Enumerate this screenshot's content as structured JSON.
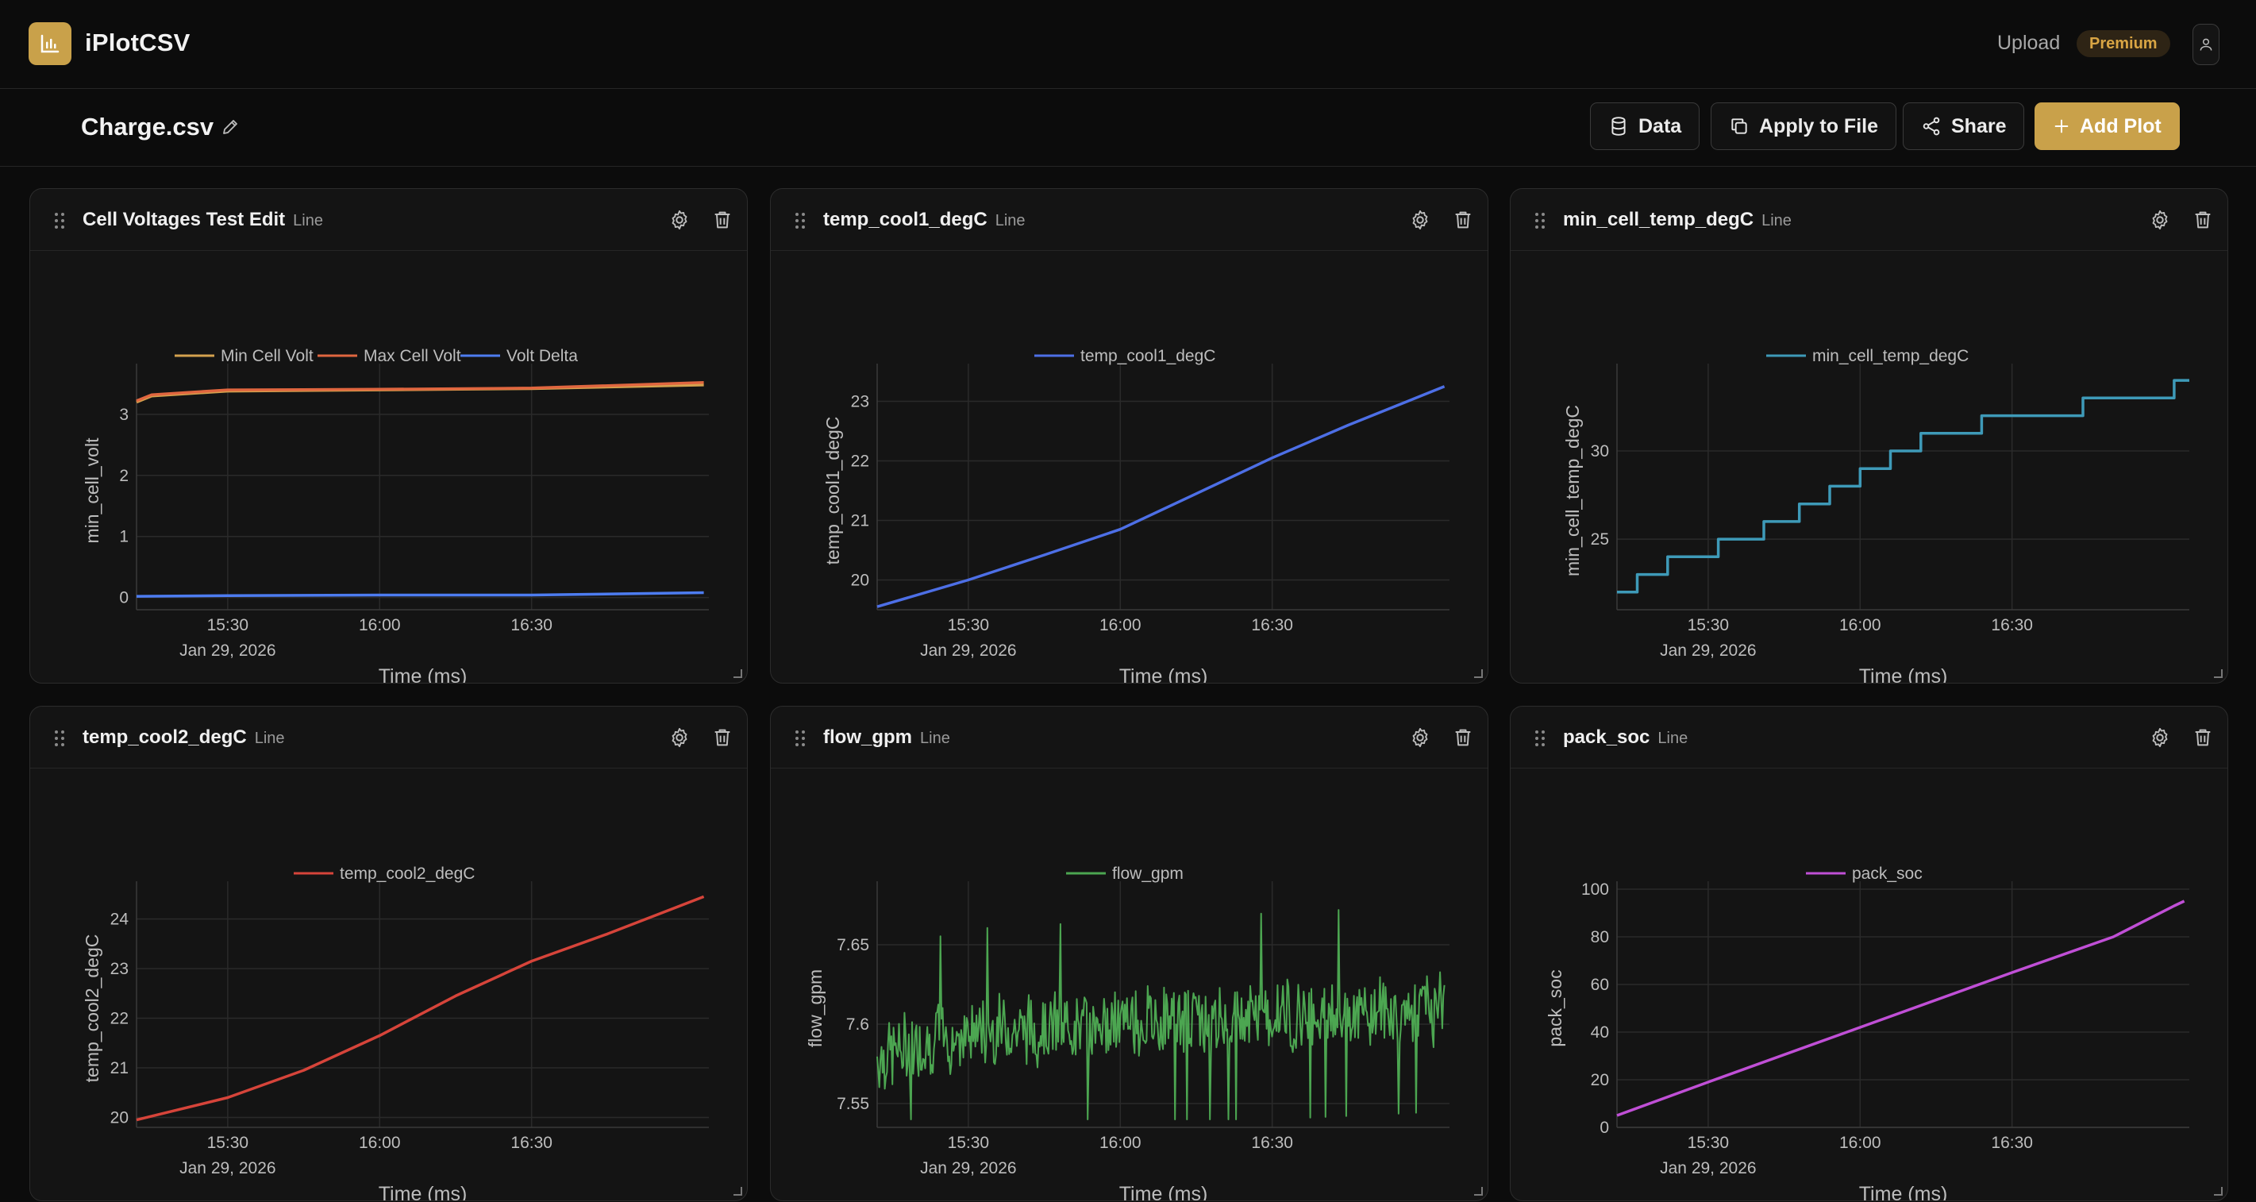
{
  "header": {
    "app_title": "iPlotCSV",
    "logo_icon": "bar-chart-icon",
    "upload_label": "Upload",
    "premium_label": "Premium",
    "accent_color": "#c9a14a"
  },
  "file": {
    "name": "Charge.csv",
    "data_label": "Data",
    "apply_label": "Apply to File",
    "share_label": "Share",
    "add_plot_label": "Add Plot"
  },
  "panels": [
    {
      "title": "Cell Voltages Test Edit",
      "type": "Line"
    },
    {
      "title": "temp_cool1_degC",
      "type": "Line"
    },
    {
      "title": "min_cell_temp_degC",
      "type": "Line"
    },
    {
      "title": "temp_cool2_degC",
      "type": "Line"
    },
    {
      "title": "flow_gpm",
      "type": "Line"
    },
    {
      "title": "pack_soc",
      "type": "Line"
    }
  ],
  "chart_data": [
    {
      "type": "line",
      "xlabel": "Time (ms)",
      "ylabel": "min_cell_volt",
      "x_ticks": [
        "15:30",
        "16:00",
        "16:30"
      ],
      "x_date": "Jan 29, 2026",
      "x_range": [
        "15:12",
        "17:05"
      ],
      "ylim": [
        -0.2,
        3.7
      ],
      "y_ticks": [
        0,
        1,
        2,
        3
      ],
      "legend": "top-center",
      "grid": true,
      "series": [
        {
          "name": "Min Cell Volt",
          "color": "#d4a24e",
          "x": [
            "15:12",
            "15:15",
            "15:30",
            "16:00",
            "16:30",
            "17:04"
          ],
          "values": [
            3.2,
            3.3,
            3.38,
            3.4,
            3.42,
            3.48
          ]
        },
        {
          "name": "Max Cell Volt",
          "color": "#e0663f",
          "x": [
            "15:12",
            "15:15",
            "15:30",
            "16:00",
            "16:30",
            "17:04"
          ],
          "values": [
            3.22,
            3.32,
            3.4,
            3.41,
            3.43,
            3.52
          ]
        },
        {
          "name": "Volt Delta",
          "color": "#4d7cf0",
          "x": [
            "15:12",
            "15:30",
            "16:00",
            "16:30",
            "17:04"
          ],
          "values": [
            0.02,
            0.03,
            0.04,
            0.04,
            0.08
          ]
        }
      ]
    },
    {
      "type": "line",
      "xlabel": "Time (ms)",
      "ylabel": "temp_cool1_degC",
      "x_ticks": [
        "15:30",
        "16:00",
        "16:30"
      ],
      "x_date": "Jan 29, 2026",
      "x_range": [
        "15:12",
        "17:05"
      ],
      "ylim": [
        19.5,
        23.5
      ],
      "y_ticks": [
        20,
        21,
        22,
        23
      ],
      "legend": "top-center",
      "grid": true,
      "series": [
        {
          "name": "temp_cool1_degC",
          "color": "#4d6fe6",
          "x": [
            "15:12",
            "15:30",
            "15:45",
            "16:00",
            "16:15",
            "16:30",
            "16:45",
            "17:04"
          ],
          "values": [
            19.55,
            20.0,
            20.42,
            20.85,
            21.45,
            22.05,
            22.6,
            23.25
          ]
        }
      ]
    },
    {
      "type": "line",
      "xlabel": "Time (ms)",
      "ylabel": "min_cell_temp_degC",
      "x_ticks": [
        "15:30",
        "16:00",
        "16:30"
      ],
      "x_date": "Jan 29, 2026",
      "x_range": [
        "15:12",
        "17:05"
      ],
      "ylim": [
        21,
        34.5
      ],
      "y_ticks": [
        25,
        30
      ],
      "legend": "top-center",
      "grid": true,
      "series": [
        {
          "name": "min_cell_temp_degC",
          "color": "#3e9ab8",
          "step": true,
          "x": [
            "15:12",
            "15:16",
            "15:22",
            "15:32",
            "15:41",
            "15:48",
            "15:54",
            "16:00",
            "16:06",
            "16:12",
            "16:24",
            "16:44",
            "17:02",
            "17:05"
          ],
          "values": [
            22,
            23,
            24,
            25,
            26,
            27,
            28,
            29,
            30,
            31,
            32,
            33,
            34,
            34
          ]
        }
      ]
    },
    {
      "type": "line",
      "xlabel": "Time (ms)",
      "ylabel": "temp_cool2_degC",
      "x_ticks": [
        "15:30",
        "16:00",
        "16:30"
      ],
      "x_date": "Jan 29, 2026",
      "x_range": [
        "15:12",
        "17:05"
      ],
      "ylim": [
        19.8,
        24.6
      ],
      "y_ticks": [
        20,
        21,
        22,
        23,
        24
      ],
      "legend": "top-center",
      "grid": true,
      "series": [
        {
          "name": "temp_cool2_degC",
          "color": "#d6443a",
          "x": [
            "15:12",
            "15:30",
            "15:45",
            "16:00",
            "16:15",
            "16:30",
            "16:45",
            "17:04"
          ],
          "values": [
            19.95,
            20.4,
            20.95,
            21.65,
            22.45,
            23.15,
            23.7,
            24.45
          ]
        }
      ]
    },
    {
      "type": "line",
      "xlabel": "Time (ms)",
      "ylabel": "flow_gpm",
      "x_ticks": [
        "15:30",
        "16:00",
        "16:30"
      ],
      "x_date": "Jan 29, 2026",
      "x_range": [
        "15:12",
        "17:05"
      ],
      "ylim": [
        7.535,
        7.685
      ],
      "y_ticks": [
        7.55,
        7.6,
        7.65
      ],
      "legend": "top-center",
      "grid": true,
      "series": [
        {
          "name": "flow_gpm",
          "color": "#4ca651",
          "x": [
            "15:12",
            "15:30",
            "16:00",
            "16:30",
            "17:04"
          ],
          "values": [
            7.58,
            7.595,
            7.6,
            7.605,
            7.61
          ],
          "noise": 0.025
        }
      ]
    },
    {
      "type": "line",
      "xlabel": "Time (ms)",
      "ylabel": "pack_soc",
      "x_ticks": [
        "15:30",
        "16:00",
        "16:30"
      ],
      "x_date": "Jan 29, 2026",
      "x_range": [
        "15:12",
        "17:05"
      ],
      "ylim": [
        0,
        100
      ],
      "y_ticks": [
        0,
        20,
        40,
        60,
        80,
        100
      ],
      "legend": "top-center",
      "grid": true,
      "series": [
        {
          "name": "pack_soc",
          "color": "#c04fd6",
          "x": [
            "15:12",
            "15:30",
            "16:00",
            "16:30",
            "16:50",
            "17:02",
            "17:04"
          ],
          "values": [
            5,
            19,
            42,
            65,
            80,
            93,
            95
          ]
        }
      ]
    }
  ]
}
